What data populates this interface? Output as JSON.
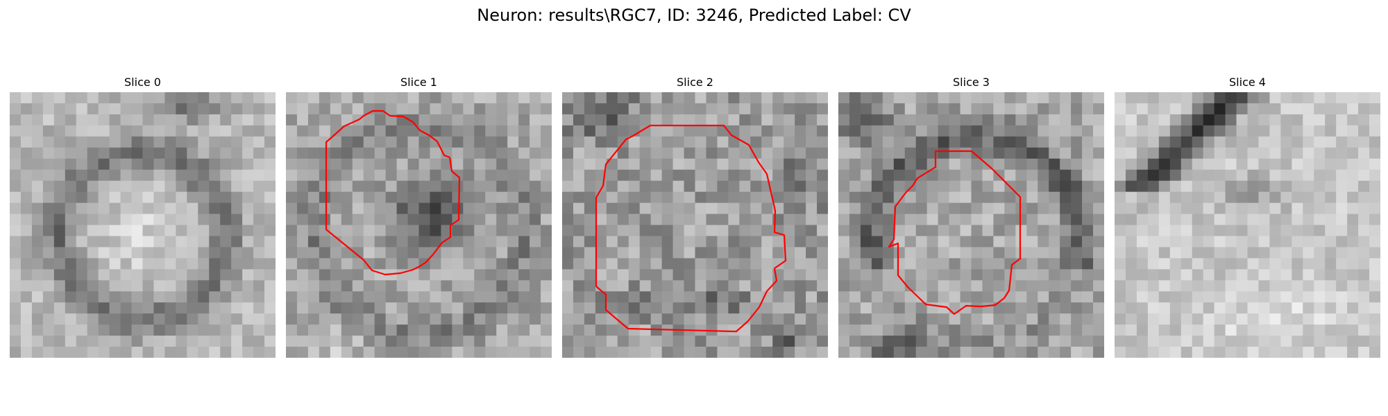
{
  "figure": {
    "title": "Neuron: results\\RGC7, ID: 3246, Predicted Label: CV",
    "contour_color": "#ff0000",
    "panels": [
      {
        "title": "Slice 0",
        "has_contour": false
      },
      {
        "title": "Slice 1",
        "has_contour": true
      },
      {
        "title": "Slice 2",
        "has_contour": true
      },
      {
        "title": "Slice 3",
        "has_contour": true
      },
      {
        "title": "Slice 4",
        "has_contour": false
      }
    ]
  }
}
